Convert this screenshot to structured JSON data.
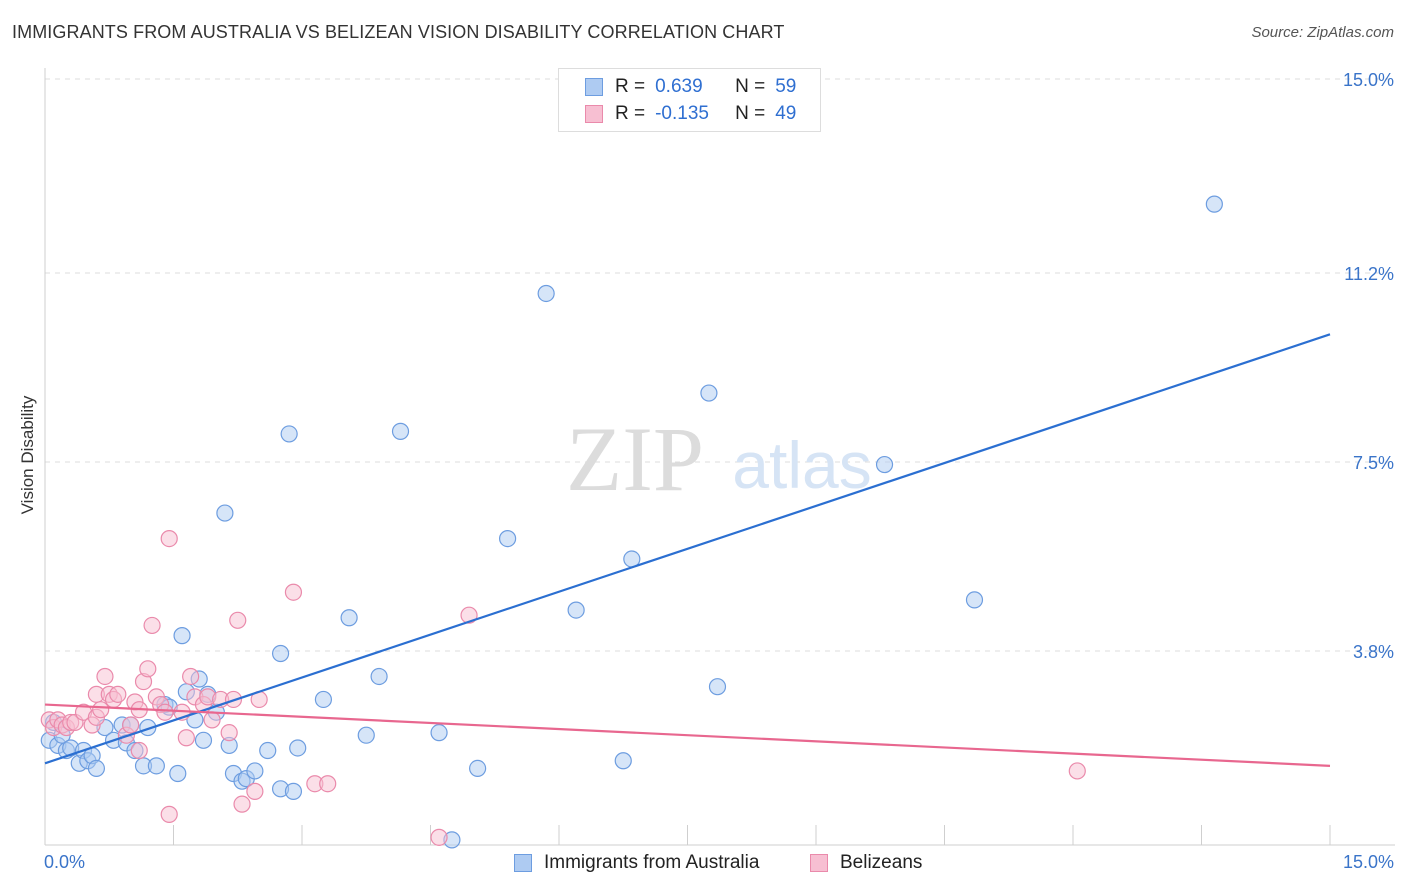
{
  "header": {
    "title": "IMMIGRANTS FROM AUSTRALIA VS BELIZEAN VISION DISABILITY CORRELATION CHART",
    "source": "Source: ZipAtlas.com"
  },
  "watermark": {
    "zip": "ZIP",
    "atlas": "atlas"
  },
  "legend": {
    "rows": [
      {
        "r_label": "R =",
        "r_value": "0.639",
        "n_label": "N =",
        "n_value": "59"
      },
      {
        "r_label": "R =",
        "r_value": "-0.135",
        "n_label": "N =",
        "n_value": "49"
      }
    ]
  },
  "bottom_legend": {
    "series1": "Immigrants from Australia",
    "series2": "Belizeans"
  },
  "colors": {
    "blue_fill": "#aecbf2",
    "blue_stroke": "#6d9de0",
    "blue_line": "#2b6fd1",
    "pink_fill": "#f7bfd2",
    "pink_stroke": "#ea8aab",
    "pink_line": "#e8678f",
    "grid": "#dcdcdc",
    "tick_text": "#3a74c9"
  },
  "chart_data": {
    "type": "scatter",
    "title": "IMMIGRANTS FROM AUSTRALIA VS BELIZEAN VISION DISABILITY CORRELATION CHART",
    "xlabel": "",
    "ylabel": "Vision Disability",
    "xlim": [
      0,
      15
    ],
    "ylim": [
      0,
      15
    ],
    "x_tick_labels": [
      "0.0%",
      "15.0%"
    ],
    "y_ticks": [
      3.8,
      7.5,
      11.2,
      15.0
    ],
    "y_tick_labels": [
      "3.8%",
      "7.5%",
      "11.2%",
      "15.0%"
    ],
    "series": [
      {
        "name": "Immigrants from Australia",
        "color": "#6d9de0",
        "trend": {
          "x": [
            0,
            15
          ],
          "y": [
            1.6,
            10.0
          ]
        },
        "points": [
          [
            0.05,
            2.05
          ],
          [
            0.1,
            2.4
          ],
          [
            0.15,
            1.95
          ],
          [
            0.2,
            2.15
          ],
          [
            0.25,
            1.85
          ],
          [
            0.3,
            1.9
          ],
          [
            0.4,
            1.6
          ],
          [
            0.45,
            1.85
          ],
          [
            0.5,
            1.65
          ],
          [
            0.55,
            1.75
          ],
          [
            0.6,
            1.5
          ],
          [
            0.7,
            2.3
          ],
          [
            0.8,
            2.05
          ],
          [
            0.9,
            2.35
          ],
          [
            0.95,
            2.0
          ],
          [
            1.0,
            2.35
          ],
          [
            1.05,
            1.85
          ],
          [
            1.15,
            1.55
          ],
          [
            1.2,
            2.3
          ],
          [
            1.3,
            1.55
          ],
          [
            1.4,
            2.75
          ],
          [
            1.45,
            2.7
          ],
          [
            1.55,
            1.4
          ],
          [
            1.6,
            4.1
          ],
          [
            1.65,
            3.0
          ],
          [
            1.75,
            2.45
          ],
          [
            1.8,
            3.25
          ],
          [
            1.85,
            2.05
          ],
          [
            1.9,
            2.95
          ],
          [
            2.0,
            2.6
          ],
          [
            2.1,
            6.5
          ],
          [
            2.15,
            1.95
          ],
          [
            2.2,
            1.4
          ],
          [
            2.3,
            1.25
          ],
          [
            2.35,
            1.3
          ],
          [
            2.45,
            1.45
          ],
          [
            2.6,
            1.85
          ],
          [
            2.75,
            1.1
          ],
          [
            2.75,
            3.75
          ],
          [
            2.85,
            8.05
          ],
          [
            2.9,
            1.05
          ],
          [
            2.95,
            1.9
          ],
          [
            3.25,
            2.85
          ],
          [
            3.75,
            2.15
          ],
          [
            3.55,
            4.45
          ],
          [
            3.9,
            3.3
          ],
          [
            4.15,
            8.1
          ],
          [
            4.6,
            2.2
          ],
          [
            4.75,
            0.1
          ],
          [
            5.05,
            1.5
          ],
          [
            5.4,
            6.0
          ],
          [
            5.85,
            10.8
          ],
          [
            6.2,
            4.6
          ],
          [
            6.75,
            1.65
          ],
          [
            6.85,
            5.6
          ],
          [
            7.75,
            8.85
          ],
          [
            7.85,
            3.1
          ],
          [
            9.8,
            7.45
          ],
          [
            10.85,
            4.8
          ],
          [
            13.65,
            12.55
          ]
        ]
      },
      {
        "name": "Belizeans",
        "color": "#ea8aab",
        "trend": {
          "x": [
            0,
            15
          ],
          "y": [
            2.75,
            1.55
          ]
        },
        "points": [
          [
            0.05,
            2.45
          ],
          [
            0.1,
            2.3
          ],
          [
            0.15,
            2.45
          ],
          [
            0.2,
            2.35
          ],
          [
            0.25,
            2.3
          ],
          [
            0.3,
            2.4
          ],
          [
            0.35,
            2.4
          ],
          [
            0.45,
            2.6
          ],
          [
            0.55,
            2.35
          ],
          [
            0.6,
            2.5
          ],
          [
            0.6,
            2.95
          ],
          [
            0.65,
            2.65
          ],
          [
            0.7,
            3.3
          ],
          [
            0.75,
            2.95
          ],
          [
            0.8,
            2.85
          ],
          [
            0.85,
            2.95
          ],
          [
            0.95,
            2.15
          ],
          [
            1.0,
            2.35
          ],
          [
            1.05,
            2.8
          ],
          [
            1.1,
            2.65
          ],
          [
            1.1,
            1.85
          ],
          [
            1.15,
            3.2
          ],
          [
            1.2,
            3.45
          ],
          [
            1.25,
            4.3
          ],
          [
            1.3,
            2.9
          ],
          [
            1.35,
            2.75
          ],
          [
            1.4,
            2.6
          ],
          [
            1.45,
            0.6
          ],
          [
            1.45,
            6.0
          ],
          [
            1.6,
            2.6
          ],
          [
            1.65,
            2.1
          ],
          [
            1.7,
            3.3
          ],
          [
            1.75,
            2.9
          ],
          [
            1.85,
            2.75
          ],
          [
            1.9,
            2.9
          ],
          [
            1.95,
            2.45
          ],
          [
            2.05,
            2.85
          ],
          [
            2.15,
            2.2
          ],
          [
            2.2,
            2.85
          ],
          [
            2.25,
            4.4
          ],
          [
            2.3,
            0.8
          ],
          [
            2.45,
            1.05
          ],
          [
            2.5,
            2.85
          ],
          [
            2.9,
            4.95
          ],
          [
            3.15,
            1.2
          ],
          [
            3.3,
            1.2
          ],
          [
            4.6,
            0.15
          ],
          [
            4.95,
            4.5
          ],
          [
            12.05,
            1.45
          ]
        ]
      }
    ]
  }
}
